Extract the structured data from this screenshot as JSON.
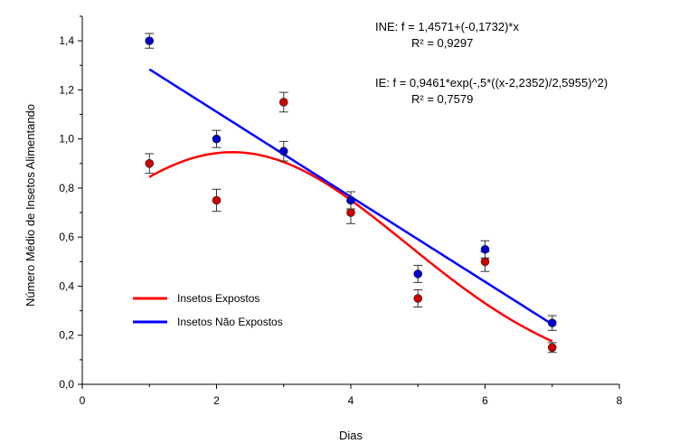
{
  "chart_data": {
    "type": "scatter",
    "xlabel": "Dias",
    "ylabel": "Número Médio de Insetos Alimentando",
    "xlim": [
      0,
      8
    ],
    "ylim": [
      0,
      1.5
    ],
    "x_ticks": [
      "0",
      "2",
      "4",
      "6",
      "8"
    ],
    "y_ticks": [
      "0,0",
      "0,2",
      "0,4",
      "0,6",
      "0,8",
      "1,0",
      "1,2",
      "1,4"
    ],
    "grid": false,
    "legend_position": "bottom-left",
    "annotations": [
      "INE: f = 1,4571+(-0,1732)*x",
      "R² = 0,9297",
      "IE: f = 0,9461*exp(-,5*((x-2,2352)/2,5955)^2)",
      "R² = 0,7579"
    ],
    "series": [
      {
        "name": "Insetos Expostos",
        "color": "#ff0000",
        "marker_color": "#cc0000",
        "x": [
          1,
          2,
          3,
          4,
          5,
          6,
          7
        ],
        "y": [
          0.9,
          0.75,
          1.15,
          0.7,
          0.35,
          0.5,
          0.15
        ],
        "error": [
          0.04,
          0.045,
          0.04,
          0.045,
          0.035,
          0.04,
          0.02
        ],
        "fit": {
          "model": "gaussian",
          "a": 0.9461,
          "x0": 2.2352,
          "b": 2.5955
        }
      },
      {
        "name": "Insetos Não Expostos",
        "color": "#0000ff",
        "marker_color": "#0000cc",
        "x": [
          1,
          2,
          3,
          4,
          5,
          6,
          7
        ],
        "y": [
          1.4,
          1.0,
          0.95,
          0.75,
          0.45,
          0.55,
          0.25
        ],
        "error": [
          0.03,
          0.035,
          0.04,
          0.035,
          0.035,
          0.035,
          0.03
        ],
        "fit": {
          "model": "linear",
          "intercept": 1.4571,
          "slope": -0.1732
        }
      }
    ]
  }
}
